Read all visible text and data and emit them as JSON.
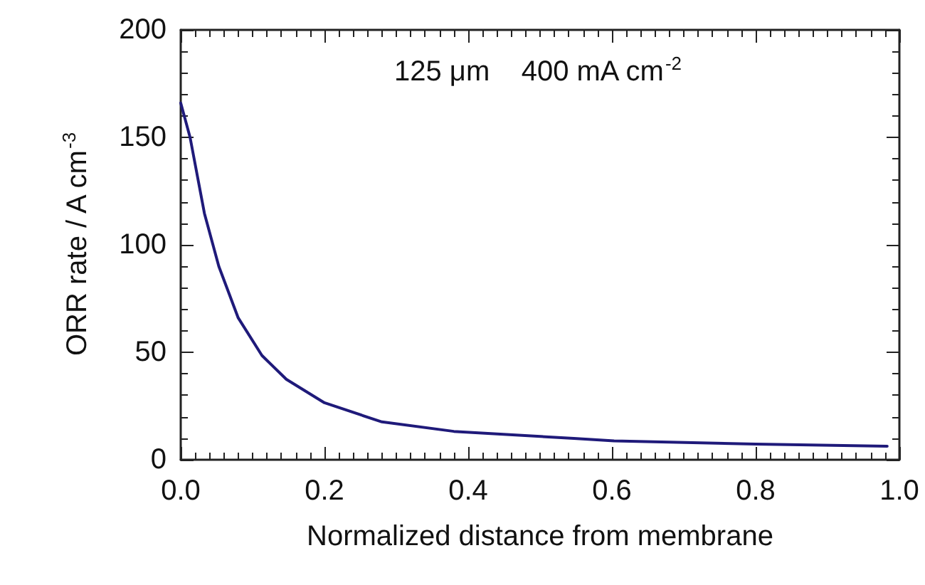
{
  "chart_data": {
    "type": "line",
    "xlabel": "Normalized distance from membrane",
    "ylabel": "ORR rate / A cm$^{-3}$",
    "annotations": [
      "125 μm    400 mA cm$^{-2}$"
    ],
    "x": [
      0,
      0.013,
      0.033,
      0.053,
      0.08,
      0.113,
      0.147,
      0.2,
      0.28,
      0.38,
      0.547,
      0.603,
      0.8,
      0.983
    ],
    "series": [
      {
        "color": "#1f1a7a",
        "values": [
          166,
          150,
          114.6,
          90,
          66,
          48.5,
          37.4,
          26.5,
          17.6,
          13.2,
          9.9,
          8.8,
          7.3,
          6.3
        ]
      }
    ],
    "xlim": [
      0,
      1
    ],
    "xticks": [
      {
        "value": 0,
        "label": "0.0"
      },
      0.2,
      0.4,
      0.6,
      0.8,
      {
        "value": 1,
        "label": "1.0"
      }
    ],
    "ylim": [
      0,
      200
    ],
    "yticks": [
      0,
      50,
      100,
      150,
      200
    ],
    "grid": false,
    "marker": "none",
    "line_style": "solid"
  }
}
